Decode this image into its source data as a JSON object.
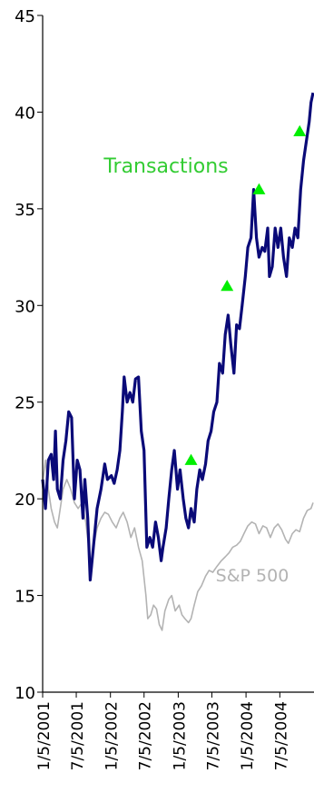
{
  "chart_data": {
    "type": "line",
    "title": "",
    "xlabel": "",
    "ylabel": "",
    "ylim": [
      10,
      45
    ],
    "yticks": [
      10,
      15,
      20,
      25,
      30,
      35,
      40,
      45
    ],
    "xlim": [
      "2001-01-05",
      "2005-01-05"
    ],
    "xtick_labels": [
      "1/5/2001",
      "7/5/2001",
      "1/5/2002",
      "7/5/2002",
      "1/5/2003",
      "7/5/2003",
      "1/5/2004",
      "7/5/2004"
    ],
    "xtick_dates": [
      "2001-01-05",
      "2001-07-05",
      "2002-01-05",
      "2002-07-05",
      "2003-01-05",
      "2003-07-05",
      "2004-01-05",
      "2004-07-05"
    ],
    "grid": false,
    "series": [
      {
        "name": "",
        "color": "#0a0a78",
        "points": [
          [
            "2001-01-05",
            21.0
          ],
          [
            "2001-01-20",
            19.5
          ],
          [
            "2001-02-05",
            22.0
          ],
          [
            "2001-02-20",
            22.3
          ],
          [
            "2001-03-05",
            21.0
          ],
          [
            "2001-03-15",
            23.5
          ],
          [
            "2001-03-25",
            20.5
          ],
          [
            "2001-04-10",
            20.0
          ],
          [
            "2001-04-25",
            22.0
          ],
          [
            "2001-05-10",
            23.0
          ],
          [
            "2001-05-25",
            24.5
          ],
          [
            "2001-06-10",
            24.2
          ],
          [
            "2001-06-25",
            20.0
          ],
          [
            "2001-07-10",
            22.0
          ],
          [
            "2001-07-25",
            21.5
          ],
          [
            "2001-08-10",
            19.0
          ],
          [
            "2001-08-20",
            21.0
          ],
          [
            "2001-09-05",
            19.0
          ],
          [
            "2001-09-18",
            15.8
          ],
          [
            "2001-10-05",
            17.5
          ],
          [
            "2001-10-25",
            19.5
          ],
          [
            "2001-11-15",
            20.5
          ],
          [
            "2001-12-05",
            21.8
          ],
          [
            "2001-12-20",
            21.0
          ],
          [
            "2002-01-10",
            21.2
          ],
          [
            "2002-01-25",
            20.8
          ],
          [
            "2002-02-10",
            21.5
          ],
          [
            "2002-02-25",
            22.5
          ],
          [
            "2002-03-10",
            24.5
          ],
          [
            "2002-03-20",
            26.3
          ],
          [
            "2002-04-05",
            25.0
          ],
          [
            "2002-04-20",
            25.5
          ],
          [
            "2002-05-05",
            25.0
          ],
          [
            "2002-05-20",
            26.2
          ],
          [
            "2002-06-05",
            26.3
          ],
          [
            "2002-06-20",
            23.5
          ],
          [
            "2002-07-05",
            22.5
          ],
          [
            "2002-07-20",
            17.5
          ],
          [
            "2002-08-05",
            18.0
          ],
          [
            "2002-08-20",
            17.5
          ],
          [
            "2002-09-05",
            18.8
          ],
          [
            "2002-09-20",
            18.0
          ],
          [
            "2002-10-05",
            16.8
          ],
          [
            "2002-10-15",
            17.5
          ],
          [
            "2002-11-01",
            18.5
          ],
          [
            "2002-11-15",
            20.0
          ],
          [
            "2002-12-01",
            21.5
          ],
          [
            "2002-12-15",
            22.5
          ],
          [
            "2003-01-01",
            20.5
          ],
          [
            "2003-01-15",
            21.5
          ],
          [
            "2003-02-01",
            20.0
          ],
          [
            "2003-02-15",
            19.0
          ],
          [
            "2003-03-01",
            18.5
          ],
          [
            "2003-03-15",
            19.5
          ],
          [
            "2003-04-01",
            18.8
          ],
          [
            "2003-04-15",
            20.5
          ],
          [
            "2003-05-01",
            21.5
          ],
          [
            "2003-05-15",
            21.0
          ],
          [
            "2003-06-01",
            21.8
          ],
          [
            "2003-06-15",
            23.0
          ],
          [
            "2003-07-01",
            23.5
          ],
          [
            "2003-07-15",
            24.5
          ],
          [
            "2003-08-01",
            25.0
          ],
          [
            "2003-08-15",
            27.0
          ],
          [
            "2003-09-01",
            26.5
          ],
          [
            "2003-09-15",
            28.5
          ],
          [
            "2003-10-01",
            29.5
          ],
          [
            "2003-10-15",
            28.0
          ],
          [
            "2003-11-01",
            26.5
          ],
          [
            "2003-11-15",
            29.0
          ],
          [
            "2003-12-01",
            28.8
          ],
          [
            "2003-12-15",
            30.0
          ],
          [
            "2004-01-01",
            31.5
          ],
          [
            "2004-01-15",
            33.0
          ],
          [
            "2004-02-01",
            33.5
          ],
          [
            "2004-02-15",
            36.0
          ],
          [
            "2004-03-01",
            33.5
          ],
          [
            "2004-03-15",
            32.5
          ],
          [
            "2004-04-01",
            33.0
          ],
          [
            "2004-04-15",
            32.8
          ],
          [
            "2004-05-01",
            34.0
          ],
          [
            "2004-05-10",
            31.5
          ],
          [
            "2004-05-25",
            32.0
          ],
          [
            "2004-06-10",
            34.0
          ],
          [
            "2004-06-25",
            33.0
          ],
          [
            "2004-07-10",
            34.0
          ],
          [
            "2004-07-25",
            32.5
          ],
          [
            "2004-08-10",
            31.5
          ],
          [
            "2004-08-25",
            33.5
          ],
          [
            "2004-09-10",
            33.0
          ],
          [
            "2004-09-25",
            34.0
          ],
          [
            "2004-10-10",
            33.5
          ],
          [
            "2004-10-25",
            36.0
          ],
          [
            "2004-11-10",
            37.5
          ],
          [
            "2004-11-25",
            38.5
          ],
          [
            "2004-12-10",
            39.5
          ],
          [
            "2004-12-20",
            40.5
          ],
          [
            "2004-12-31",
            41.0
          ]
        ]
      },
      {
        "name": "S&P 500",
        "color": "#b3b3b3",
        "points": [
          [
            "2001-01-05",
            20.8
          ],
          [
            "2001-01-20",
            22.0
          ],
          [
            "2001-02-05",
            20.5
          ],
          [
            "2001-02-20",
            19.5
          ],
          [
            "2001-03-10",
            18.8
          ],
          [
            "2001-03-25",
            18.5
          ],
          [
            "2001-04-10",
            19.5
          ],
          [
            "2001-04-25",
            20.5
          ],
          [
            "2001-05-15",
            21.0
          ],
          [
            "2001-06-05",
            20.5
          ],
          [
            "2001-06-25",
            19.8
          ],
          [
            "2001-07-15",
            19.5
          ],
          [
            "2001-08-05",
            19.8
          ],
          [
            "2001-08-25",
            18.8
          ],
          [
            "2001-09-10",
            17.5
          ],
          [
            "2001-09-20",
            15.8
          ],
          [
            "2001-10-05",
            17.5
          ],
          [
            "2001-10-25",
            18.5
          ],
          [
            "2001-11-15",
            19.0
          ],
          [
            "2001-12-05",
            19.3
          ],
          [
            "2001-12-25",
            19.2
          ],
          [
            "2002-01-15",
            18.8
          ],
          [
            "2002-02-05",
            18.5
          ],
          [
            "2002-02-25",
            19.0
          ],
          [
            "2002-03-15",
            19.3
          ],
          [
            "2002-04-05",
            18.8
          ],
          [
            "2002-04-25",
            18.0
          ],
          [
            "2002-05-15",
            18.5
          ],
          [
            "2002-06-05",
            17.5
          ],
          [
            "2002-06-25",
            16.8
          ],
          [
            "2002-07-15",
            15.0
          ],
          [
            "2002-07-25",
            13.8
          ],
          [
            "2002-08-10",
            14.0
          ],
          [
            "2002-08-25",
            14.5
          ],
          [
            "2002-09-10",
            14.3
          ],
          [
            "2002-09-25",
            13.5
          ],
          [
            "2002-10-10",
            13.2
          ],
          [
            "2002-10-25",
            14.2
          ],
          [
            "2002-11-15",
            14.8
          ],
          [
            "2002-12-01",
            15.0
          ],
          [
            "2002-12-20",
            14.2
          ],
          [
            "2003-01-10",
            14.5
          ],
          [
            "2003-01-25",
            14.0
          ],
          [
            "2003-02-10",
            13.8
          ],
          [
            "2003-03-01",
            13.6
          ],
          [
            "2003-03-15",
            13.8
          ],
          [
            "2003-04-01",
            14.5
          ],
          [
            "2003-04-20",
            15.2
          ],
          [
            "2003-05-10",
            15.5
          ],
          [
            "2003-06-01",
            16.0
          ],
          [
            "2003-06-20",
            16.3
          ],
          [
            "2003-07-10",
            16.2
          ],
          [
            "2003-08-01",
            16.5
          ],
          [
            "2003-08-25",
            16.8
          ],
          [
            "2003-09-15",
            17.0
          ],
          [
            "2003-10-05",
            17.2
          ],
          [
            "2003-10-25",
            17.5
          ],
          [
            "2003-11-15",
            17.6
          ],
          [
            "2003-12-05",
            17.8
          ],
          [
            "2003-12-25",
            18.2
          ],
          [
            "2004-01-15",
            18.6
          ],
          [
            "2004-02-05",
            18.8
          ],
          [
            "2004-02-25",
            18.7
          ],
          [
            "2004-03-15",
            18.2
          ],
          [
            "2004-04-05",
            18.6
          ],
          [
            "2004-04-25",
            18.5
          ],
          [
            "2004-05-15",
            18.0
          ],
          [
            "2004-06-05",
            18.5
          ],
          [
            "2004-06-25",
            18.7
          ],
          [
            "2004-07-15",
            18.4
          ],
          [
            "2004-08-05",
            17.9
          ],
          [
            "2004-08-20",
            17.7
          ],
          [
            "2004-09-10",
            18.2
          ],
          [
            "2004-09-30",
            18.4
          ],
          [
            "2004-10-20",
            18.3
          ],
          [
            "2004-11-10",
            19.0
          ],
          [
            "2004-11-30",
            19.4
          ],
          [
            "2004-12-20",
            19.5
          ],
          [
            "2004-12-31",
            19.8
          ]
        ]
      }
    ],
    "transactions": {
      "color": "#00ee00",
      "points": [
        [
          "2003-03-15",
          22.0
        ],
        [
          "2003-09-25",
          31.0
        ],
        [
          "2004-03-15",
          36.0
        ],
        [
          "2004-10-20",
          39.0
        ]
      ]
    },
    "annotations": [
      {
        "text": "Transactions",
        "color": "#33cc33"
      },
      {
        "text": "S&P 500",
        "color": "#b3b3b3"
      }
    ]
  }
}
